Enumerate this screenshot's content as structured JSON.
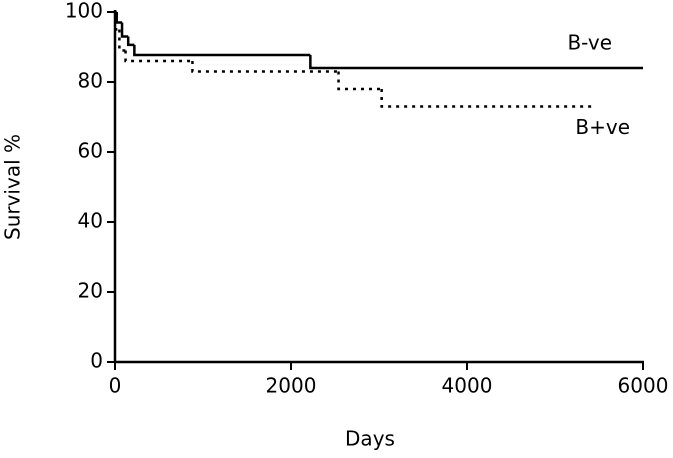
{
  "chart_data": {
    "type": "step",
    "xlabel": "Days",
    "ylabel": "Survival %",
    "xlim": [
      0,
      6000
    ],
    "xticks": [
      0,
      2000,
      4000,
      6000
    ],
    "ylim": [
      0,
      100
    ],
    "yticks": [
      0,
      20,
      40,
      60,
      80,
      100
    ],
    "series": [
      {
        "name": "B-ve",
        "color": "#000000",
        "dash": "solid",
        "x": [
          0,
          20,
          80,
          150,
          220,
          2220,
          6000
        ],
        "values": [
          100,
          97,
          93,
          90.6,
          87.7,
          84,
          84
        ]
      },
      {
        "name": "B+ve",
        "color": "#000000",
        "dash": "dotted",
        "x": [
          0,
          10,
          50,
          120,
          880,
          2540,
          3030,
          5450
        ],
        "values": [
          100,
          95,
          89,
          86,
          83,
          78,
          73,
          73
        ]
      }
    ]
  }
}
